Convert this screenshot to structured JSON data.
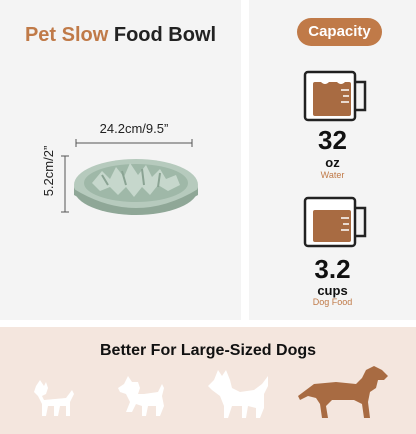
{
  "title": {
    "accent": "Pet Slow",
    "rest": " Food Bowl"
  },
  "dimensions": {
    "width": "24.2cm/9.5”",
    "height": "5.2cm/2”"
  },
  "capacity": {
    "badge": "Capacity",
    "water": {
      "value": "32",
      "unit": "oz",
      "label": "Water"
    },
    "food": {
      "value": "3.2",
      "unit": "cups",
      "label": "Dog Food"
    }
  },
  "bottom": {
    "title": "Better For Large-Sized Dogs"
  },
  "colors": {
    "accent": "#c07a48",
    "bowl": "#a9bfb2",
    "cup_fill": "#a86b42"
  },
  "icons": [
    "measuring-cup-icon",
    "dog-silhouette-icon"
  ]
}
